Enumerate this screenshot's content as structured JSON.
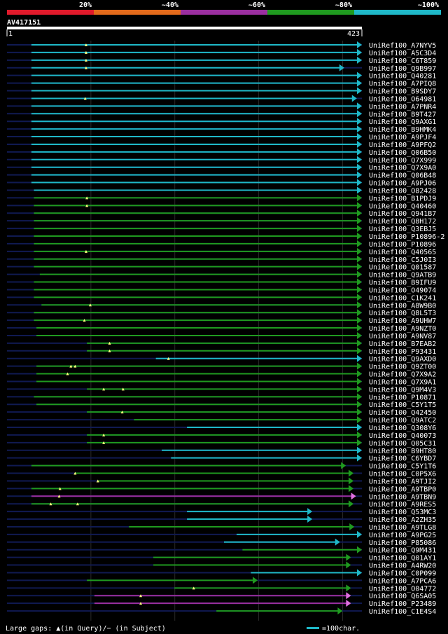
{
  "chart_data": {
    "type": "alignment-map",
    "query_id": "AV417151",
    "query_range": [
      "1",
      "423"
    ],
    "query_length": 423,
    "identity_bins": [
      {
        "label": "20%",
        "color": "#e11a2b"
      },
      {
        "label": "~40%",
        "color": "#e36a1b"
      },
      {
        "label": "~60%",
        "color": "#9b2fa0"
      },
      {
        "label": "~80%",
        "color": "#1f9a1f"
      },
      {
        "label": "~100%",
        "color": "#1fb8c8"
      }
    ],
    "legend": {
      "gaps_text": "Large gaps: ▲(in Query)/− (in Subject)",
      "scale_text": "=100char.",
      "scale_chars": 100
    },
    "hits": [
      {
        "name": "UniRef100_A7NYV5",
        "cls": "cyan",
        "start": 30,
        "end": 423,
        "tr": "cyan",
        "tris": [
          95
        ]
      },
      {
        "name": "UniRef100_A5C3D4",
        "cls": "cyan",
        "start": 30,
        "end": 423,
        "tr": "cyan",
        "tris": [
          95
        ]
      },
      {
        "name": "UniRef100_C6T859",
        "cls": "cyan",
        "start": 30,
        "end": 423,
        "tr": "cyan",
        "tris": [
          95
        ]
      },
      {
        "name": "UniRef100_Q9B997",
        "cls": "cyan",
        "start": 30,
        "end": 402,
        "tr": "cyan",
        "tris": [
          95
        ]
      },
      {
        "name": "UniRef100_Q40281",
        "cls": "cyan",
        "start": 30,
        "end": 423,
        "tr": "cyan",
        "tris": []
      },
      {
        "name": "UniRef100_A7PIQ8",
        "cls": "cyan",
        "start": 30,
        "end": 423,
        "tr": "cyan",
        "tris": []
      },
      {
        "name": "UniRef100_B9SDY7",
        "cls": "cyan",
        "start": 30,
        "end": 423,
        "tr": "cyan",
        "tris": []
      },
      {
        "name": "UniRef100_O64981",
        "cls": "cyan",
        "start": 30,
        "end": 417,
        "tr": "cyan",
        "tris": [
          94
        ]
      },
      {
        "name": "UniRef100_A7PNR4",
        "cls": "cyan",
        "start": 30,
        "end": 423,
        "tr": "cyan",
        "tris": []
      },
      {
        "name": "UniRef100_B9T427",
        "cls": "cyan",
        "start": 30,
        "end": 423,
        "tr": "cyan",
        "tris": []
      },
      {
        "name": "UniRef100_Q9AXG1",
        "cls": "cyan",
        "start": 30,
        "end": 423,
        "tr": "cyan",
        "tris": []
      },
      {
        "name": "UniRef100_B9HMK4",
        "cls": "cyan",
        "start": 30,
        "end": 423,
        "tr": "cyan",
        "tris": []
      },
      {
        "name": "UniRef100_A9PJF4",
        "cls": "cyan",
        "start": 30,
        "end": 423,
        "tr": "cyan",
        "tris": []
      },
      {
        "name": "UniRef100_A9PFQ2",
        "cls": "cyan",
        "start": 30,
        "end": 423,
        "tr": "cyan",
        "tris": []
      },
      {
        "name": "UniRef100_Q06B50",
        "cls": "cyan",
        "start": 30,
        "end": 423,
        "tr": "cyan",
        "tris": []
      },
      {
        "name": "UniRef100_Q7X999",
        "cls": "cyan",
        "start": 30,
        "end": 423,
        "tr": "cyan",
        "tris": []
      },
      {
        "name": "UniRef100_Q7X9A0",
        "cls": "cyan",
        "start": 30,
        "end": 423,
        "tr": "cyan",
        "tris": []
      },
      {
        "name": "UniRef100_Q06B48",
        "cls": "cyan",
        "start": 30,
        "end": 423,
        "tr": "cyan",
        "tris": []
      },
      {
        "name": "UniRef100_A9PJ06",
        "cls": "cyan",
        "start": 30,
        "end": 423,
        "tr": "cyan",
        "tris": []
      },
      {
        "name": "UniRef100_O82428",
        "cls": "cyan",
        "start": 33,
        "end": 423,
        "tr": "cyan",
        "tris": []
      },
      {
        "name": "UniRef100_B1PDJ9",
        "cls": "green",
        "start": 33,
        "end": 423,
        "tr": "green",
        "tris": [
          96
        ]
      },
      {
        "name": "UniRef100_Q40460",
        "cls": "green",
        "start": 33,
        "end": 423,
        "tr": "green",
        "tris": [
          96
        ]
      },
      {
        "name": "UniRef100_Q941B7",
        "cls": "green",
        "start": 33,
        "end": 423,
        "tr": "green",
        "tris": []
      },
      {
        "name": "UniRef100_Q8H172",
        "cls": "green",
        "start": 33,
        "end": 423,
        "tr": "green",
        "tris": []
      },
      {
        "name": "UniRef100_Q3EBJ5",
        "cls": "green",
        "start": 33,
        "end": 423,
        "tr": "green",
        "tris": []
      },
      {
        "name": "UniRef100_P10896-2",
        "cls": "green",
        "start": 33,
        "end": 423,
        "tr": "green",
        "tris": []
      },
      {
        "name": "UniRef100_P10896",
        "cls": "green",
        "start": 33,
        "end": 423,
        "tr": "green",
        "tris": []
      },
      {
        "name": "UniRef100_Q40565",
        "cls": "green",
        "start": 33,
        "end": 423,
        "tr": "green",
        "tris": [
          95
        ]
      },
      {
        "name": "UniRef100_C5J0I3",
        "cls": "green",
        "start": 33,
        "end": 423,
        "tr": "green",
        "tris": []
      },
      {
        "name": "UniRef100_Q01587",
        "cls": "green",
        "start": 33,
        "end": 423,
        "tr": "green",
        "tris": []
      },
      {
        "name": "UniRef100_Q9ATB9",
        "cls": "green",
        "start": 40,
        "end": 423,
        "tr": "green",
        "tris": []
      },
      {
        "name": "UniRef100_B9IFU9",
        "cls": "green",
        "start": 33,
        "end": 423,
        "tr": "green",
        "tris": []
      },
      {
        "name": "UniRef100_O49074",
        "cls": "green",
        "start": 33,
        "end": 423,
        "tr": "green",
        "tris": []
      },
      {
        "name": "UniRef100_C1K241",
        "cls": "green",
        "start": 33,
        "end": 423,
        "tr": "green",
        "tris": []
      },
      {
        "name": "UniRef100_A8W9B0",
        "cls": "green",
        "start": 42,
        "end": 423,
        "tr": "green",
        "tris": [
          100
        ]
      },
      {
        "name": "UniRef100_Q8L5T3",
        "cls": "green",
        "start": 33,
        "end": 423,
        "tr": "green",
        "tris": []
      },
      {
        "name": "UniRef100_A9UHW7",
        "cls": "green",
        "start": 33,
        "end": 423,
        "tr": "green",
        "tris": [
          93
        ]
      },
      {
        "name": "UniRef100_A9NZT0",
        "cls": "green",
        "start": 36,
        "end": 423,
        "tr": "green",
        "tris": []
      },
      {
        "name": "UniRef100_A9NV87",
        "cls": "green",
        "start": 36,
        "end": 423,
        "tr": "green",
        "tris": []
      },
      {
        "name": "UniRef100_B7EAB2",
        "cls": "green",
        "start": 96,
        "end": 423,
        "tr": "green",
        "tris": [
          123
        ]
      },
      {
        "name": "UniRef100_P93431",
        "cls": "green",
        "start": 96,
        "end": 423,
        "tr": "green",
        "tris": [
          123
        ]
      },
      {
        "name": "UniRef100_Q9AXD0",
        "cls": "cyan",
        "start": 178,
        "end": 423,
        "tr": "cyan",
        "tris": [
          193
        ]
      },
      {
        "name": "UniRef100_Q9ZT00",
        "cls": "green",
        "start": 36,
        "end": 423,
        "tr": "green",
        "tris": [
          77,
          82
        ]
      },
      {
        "name": "UniRef100_Q7X9A2",
        "cls": "green",
        "start": 36,
        "end": 423,
        "tr": "green",
        "tris": [
          73
        ]
      },
      {
        "name": "UniRef100_Q7X9A1",
        "cls": "green",
        "start": 36,
        "end": 423,
        "tr": "green",
        "tris": []
      },
      {
        "name": "UniRef100_Q9M4V3",
        "cls": "green",
        "start": 96,
        "end": 423,
        "tr": "green",
        "tris": [
          116,
          139
        ]
      },
      {
        "name": "UniRef100_P10871",
        "cls": "green",
        "start": 33,
        "end": 423,
        "tr": "green",
        "tris": []
      },
      {
        "name": "UniRef100_C5Y1T5",
        "cls": "green",
        "start": 36,
        "end": 423,
        "tr": "green",
        "tris": []
      },
      {
        "name": "UniRef100_Q42450",
        "cls": "green",
        "start": 96,
        "end": 423,
        "tr": "green",
        "tris": [
          138
        ]
      },
      {
        "name": "UniRef100_Q9ATC2",
        "cls": "green",
        "start": 152,
        "end": 423,
        "tr": "green",
        "tris": []
      },
      {
        "name": "UniRef100_Q308Y6",
        "cls": "cyan",
        "start": 215,
        "end": 423,
        "tr": "cyan",
        "tris": []
      },
      {
        "name": "UniRef100_Q40073",
        "cls": "green",
        "start": 96,
        "end": 423,
        "tr": "green",
        "tris": [
          116
        ]
      },
      {
        "name": "UniRef100_Q05C31",
        "cls": "green",
        "start": 96,
        "end": 423,
        "tr": "green",
        "tris": [
          116
        ]
      },
      {
        "name": "UniRef100_B9HT80",
        "cls": "cyan",
        "start": 185,
        "end": 423,
        "tr": "cyan",
        "tris": []
      },
      {
        "name": "UniRef100_C6YBD7",
        "cls": "cyan",
        "start": 196,
        "end": 423,
        "tr": "cyan",
        "tris": []
      },
      {
        "name": "UniRef100_C5Y1T6",
        "cls": "green",
        "start": 30,
        "end": 404,
        "tr": "green",
        "tris": []
      },
      {
        "name": "UniRef100_C0P5X6",
        "cls": "green",
        "start": 82,
        "end": 413,
        "tr": "green",
        "tris": [
          82
        ]
      },
      {
        "name": "UniRef100_A9TJI2",
        "cls": "green",
        "start": 109,
        "end": 413,
        "tr": "green",
        "tris": [
          109
        ]
      },
      {
        "name": "UniRef100_A9TBP0",
        "cls": "green",
        "start": 30,
        "end": 413,
        "tr": "green",
        "tris": [
          64
        ]
      },
      {
        "name": "UniRef100_A9TBN9",
        "cls": "purple",
        "start": 30,
        "end": 416,
        "tr": "pink",
        "tris": [
          63
        ]
      },
      {
        "name": "UniRef100_A9RES5",
        "cls": "green",
        "start": 30,
        "end": 413,
        "tr": "green",
        "tris": [
          53,
          85
        ]
      },
      {
        "name": "UniRef100_Q53MC3",
        "cls": "cyan",
        "start": 215,
        "end": 364,
        "tr": "cyan",
        "tris": []
      },
      {
        "name": "UniRef100_A2ZH35",
        "cls": "cyan",
        "start": 215,
        "end": 364,
        "tr": "cyan",
        "tris": []
      },
      {
        "name": "UniRef100_A9TLG8",
        "cls": "green",
        "start": 146,
        "end": 414,
        "tr": "green",
        "tris": []
      },
      {
        "name": "UniRef100_A9PG25",
        "cls": "cyan",
        "start": 274,
        "end": 423,
        "tr": "cyan",
        "tris": []
      },
      {
        "name": "UniRef100_P85086",
        "cls": "cyan",
        "start": 259,
        "end": 397,
        "tr": "cyan",
        "tris": []
      },
      {
        "name": "UniRef100_Q9M431",
        "cls": "green",
        "start": 281,
        "end": 423,
        "tr": "green",
        "tris": []
      },
      {
        "name": "UniRef100_Q01AY1",
        "cls": "green",
        "start": 175,
        "end": 410,
        "tr": "green",
        "tris": []
      },
      {
        "name": "UniRef100_A4RW20",
        "cls": "green",
        "start": 175,
        "end": 410,
        "tr": "green",
        "tris": []
      },
      {
        "name": "UniRef100_C0P099",
        "cls": "cyan",
        "start": 291,
        "end": 423,
        "tr": "cyan",
        "tris": []
      },
      {
        "name": "UniRef100_A7PCA6",
        "cls": "green",
        "start": 96,
        "end": 299,
        "tr": "green",
        "tris": []
      },
      {
        "name": "UniRef100_O04772",
        "cls": "green",
        "start": 200,
        "end": 410,
        "tr": "green",
        "tris": [
          223
        ]
      },
      {
        "name": "UniRef100_Q6SA05",
        "cls": "purple",
        "start": 105,
        "end": 410,
        "tr": "pink",
        "tris": [
          160
        ]
      },
      {
        "name": "UniRef100_P23489",
        "cls": "purple",
        "start": 105,
        "end": 410,
        "tr": "pink",
        "tris": [
          160
        ]
      },
      {
        "name": "UniRef100_C1E4S4",
        "cls": "green",
        "start": 250,
        "end": 400,
        "tr": "green",
        "tris": []
      }
    ]
  }
}
